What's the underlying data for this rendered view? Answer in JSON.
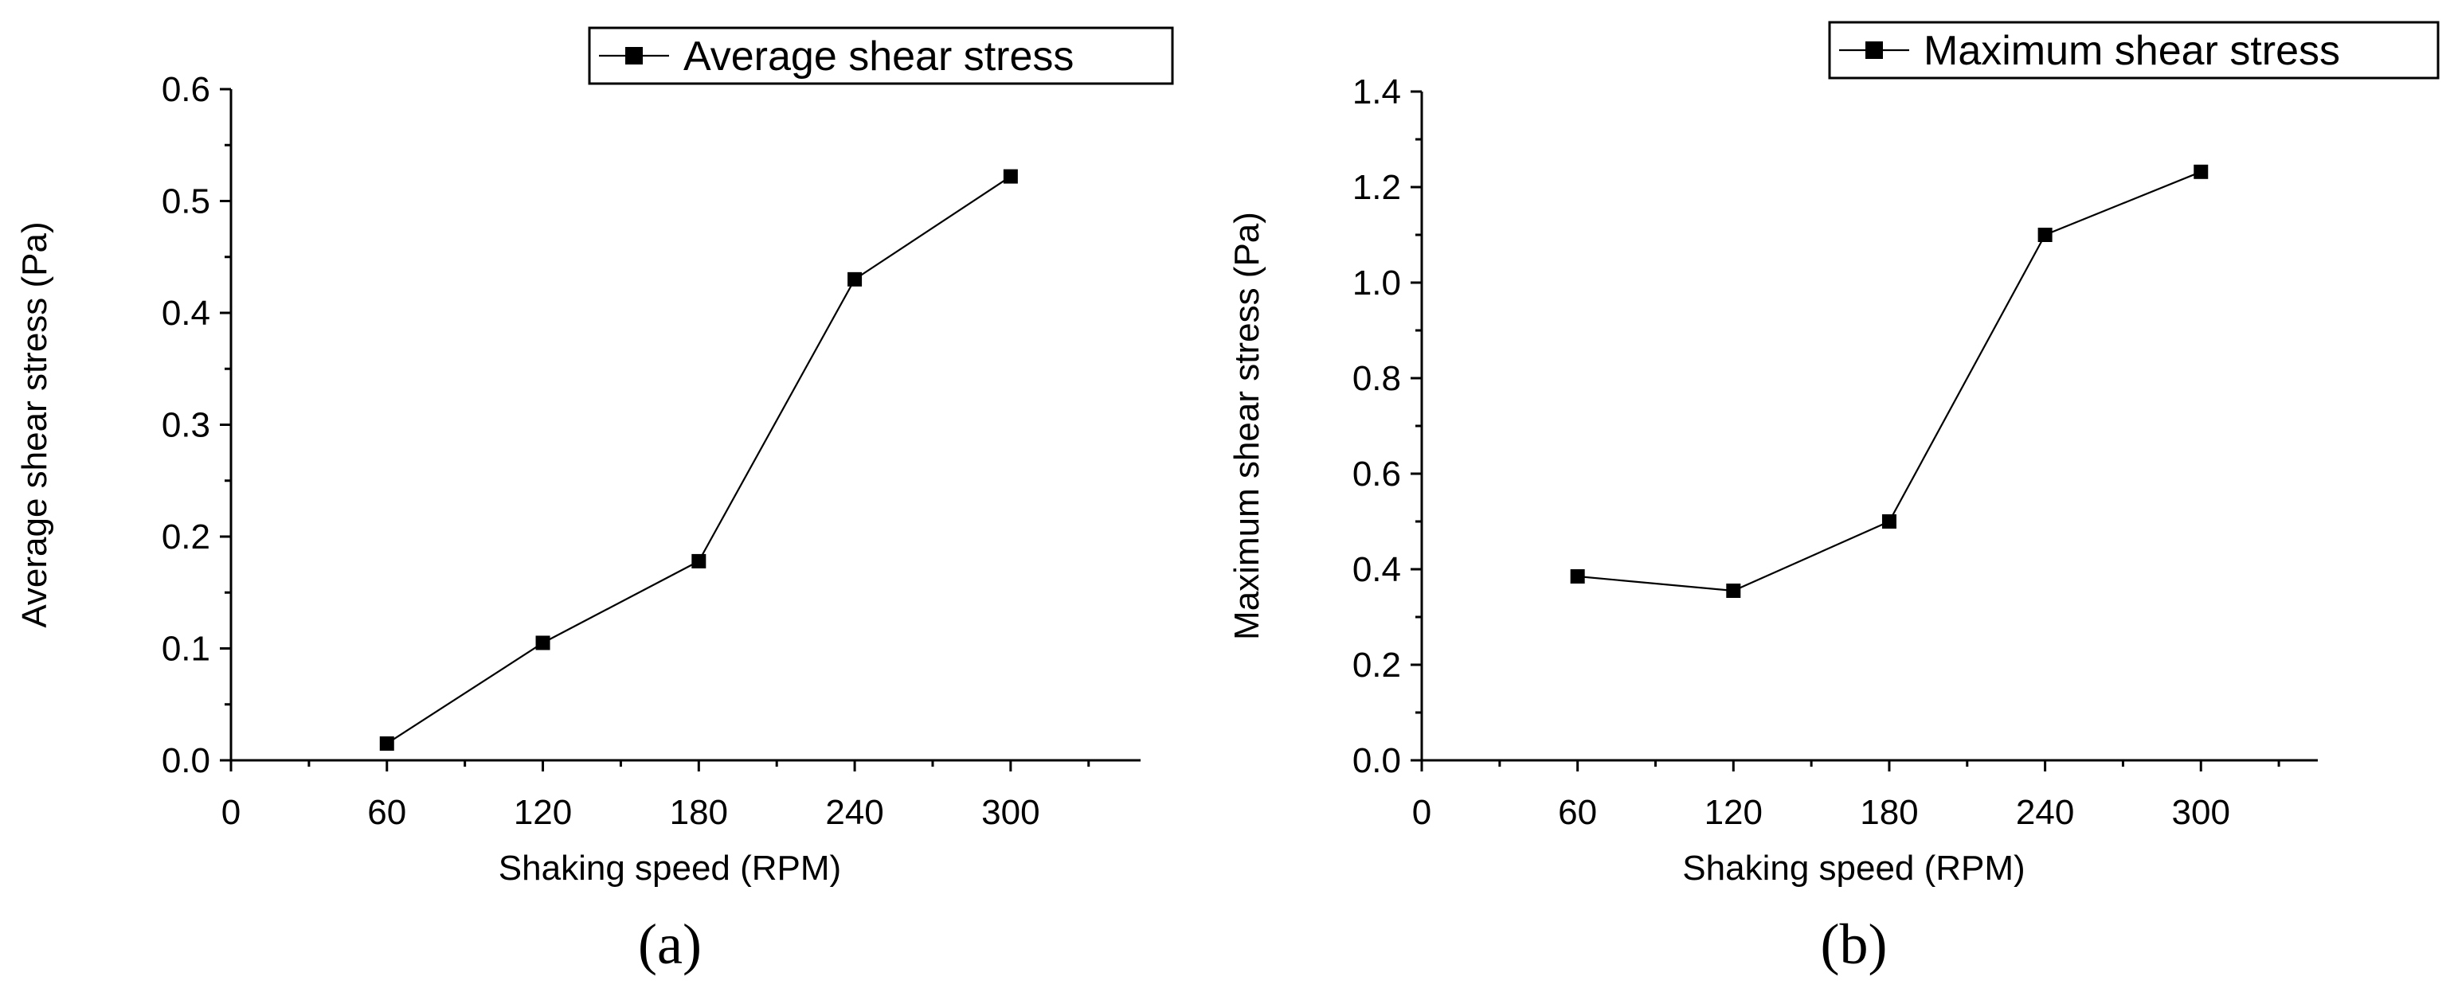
{
  "chart_data": [
    {
      "type": "line",
      "panel_label": "(a)",
      "title": "",
      "xlabel": "Shaking speed (RPM)",
      "ylabel": "Average shear stress (Pa)",
      "xlim": [
        0,
        350
      ],
      "ylim": [
        0,
        0.6
      ],
      "x_ticks": [
        0,
        60,
        120,
        180,
        240,
        300
      ],
      "x_tick_labels": [
        "0",
        "60",
        "120",
        "180",
        "240",
        "300"
      ],
      "y_ticks": [
        0,
        0.1,
        0.2,
        0.3,
        0.4,
        0.5,
        0.6
      ],
      "y_tick_labels": [
        "0.0",
        "0.1",
        "0.2",
        "0.3",
        "0.4",
        "0.5",
        "0.6"
      ],
      "legend_position": "top-right",
      "grid": false,
      "series": [
        {
          "name": "Average shear stress",
          "marker": "square",
          "color": "#000000",
          "x": [
            60,
            120,
            180,
            240,
            300
          ],
          "y": [
            0.015,
            0.105,
            0.178,
            0.43,
            0.522
          ]
        }
      ]
    },
    {
      "type": "line",
      "panel_label": "(b)",
      "title": "",
      "xlabel": "Shaking speed (RPM)",
      "ylabel": "Maximum shear stress (Pa)",
      "xlim": [
        0,
        345
      ],
      "ylim": [
        0,
        1.4
      ],
      "x_ticks": [
        0,
        60,
        120,
        180,
        240,
        300
      ],
      "x_tick_labels": [
        "0",
        "60",
        "120",
        "180",
        "240",
        "300"
      ],
      "y_ticks": [
        0,
        0.2,
        0.4,
        0.6,
        0.8,
        1.0,
        1.2,
        1.4
      ],
      "y_tick_labels": [
        "0.0",
        "0.2",
        "0.4",
        "0.6",
        "0.8",
        "1.0",
        "1.2",
        "1.4"
      ],
      "legend_position": "top-right",
      "grid": false,
      "series": [
        {
          "name": "Maximum shear stress",
          "marker": "square",
          "color": "#000000",
          "x": [
            60,
            120,
            180,
            240,
            300
          ],
          "y": [
            0.385,
            0.355,
            0.5,
            1.1,
            1.232
          ]
        }
      ]
    }
  ]
}
